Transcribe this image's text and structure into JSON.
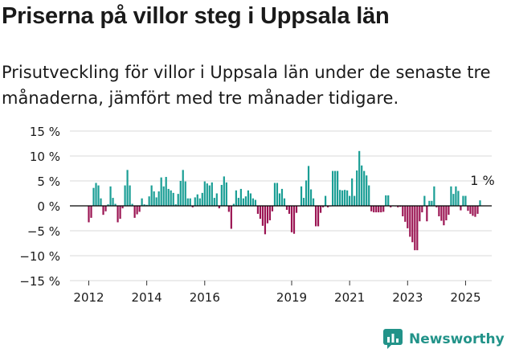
{
  "title": "Priserna på villor steg i Uppsala län",
  "subtitle": "Prisutveckling för villor i Uppsala län under de senaste tre månaderna, jämfört med tre månader tidigare.",
  "brand": {
    "name": "Newsworthy",
    "icon": "bar-chart-logo-icon",
    "color": "#229389"
  },
  "colors": {
    "positive": "#1a9e95",
    "negative": "#9b1553",
    "zero_line": "#000000",
    "grid": "#d9d9d9"
  },
  "chart_data": {
    "type": "bar",
    "title": "Priserna på villor steg i Uppsala län",
    "xlabel": "",
    "ylabel": "",
    "ylim": [
      -15,
      15
    ],
    "yticks": [
      -15,
      -10,
      -5,
      0,
      5,
      10,
      15
    ],
    "ytick_labels": [
      "−15 %",
      "−10 %",
      "−5 %",
      "0 %",
      "5 %",
      "10 %",
      "15 %"
    ],
    "xticks": [
      2012,
      2014,
      2016,
      2019,
      2021,
      2023,
      2025
    ],
    "xtick_labels": [
      "2012",
      "2014",
      "2016",
      "2019",
      "2021",
      "2023",
      "2025"
    ],
    "x_start": "2012-01",
    "x_step": "month",
    "values": [
      -3.3,
      -2.4,
      3.6,
      4.6,
      4.1,
      1.5,
      -1.8,
      -1.1,
      0.3,
      3.9,
      1.6,
      0.4,
      -3.3,
      -2.6,
      -0.5,
      4.1,
      7.2,
      4.1,
      0.4,
      -2.4,
      -1.7,
      -1.2,
      1.5,
      0.3,
      0.2,
      1.9,
      4.1,
      2.9,
      1.7,
      2.9,
      5.7,
      3.9,
      5.8,
      3.4,
      3.1,
      2.6,
      0.3,
      2.4,
      5.0,
      7.2,
      4.9,
      1.5,
      1.5,
      -0.3,
      1.7,
      2.3,
      1.5,
      2.6,
      4.9,
      4.5,
      4.1,
      4.7,
      1.6,
      2.5,
      -0.5,
      4.2,
      5.9,
      4.7,
      -1.2,
      -4.6,
      0.4,
      3.1,
      1.6,
      3.4,
      1.5,
      1.9,
      3.1,
      2.5,
      1.5,
      1.2,
      -1.6,
      -2.6,
      -4.0,
      -5.7,
      -3.5,
      -2.9,
      -1.1,
      4.6,
      4.6,
      2.5,
      3.4,
      1.5,
      -0.8,
      -1.6,
      -5.3,
      -5.6,
      -1.4,
      -0.1,
      3.9,
      1.6,
      5.1,
      8.0,
      3.3,
      1.5,
      -4.1,
      -4.1,
      -1.4,
      -0.3,
      2.0,
      -0.3,
      -0.1,
      7.0,
      7.0,
      7.0,
      3.2,
      3.1,
      3.2,
      3.1,
      2.0,
      5.5,
      2.0,
      7.1,
      11.0,
      8.1,
      7.0,
      6.1,
      4.1,
      -1.1,
      -1.3,
      -1.3,
      -1.3,
      -1.3,
      -1.2,
      2.1,
      2.1,
      -0.3,
      0.1,
      -0.1,
      -0.3,
      -0.2,
      -2.1,
      -3.2,
      -4.5,
      -6.2,
      -7.3,
      -8.9,
      -8.9,
      -3.1,
      -1.3,
      2.0,
      -3.1,
      1.0,
      1.0,
      3.9,
      -0.3,
      -2.1,
      -3.0,
      -3.9,
      -2.9,
      -1.8,
      3.9,
      2.4,
      3.9,
      3.0,
      -0.9,
      2.0,
      2.0,
      -1.0,
      -1.6,
      -2.0,
      -2.2,
      -1.6,
      1.1
    ],
    "annotation": {
      "text": "1 %",
      "index": 163,
      "value": 1.1
    }
  }
}
